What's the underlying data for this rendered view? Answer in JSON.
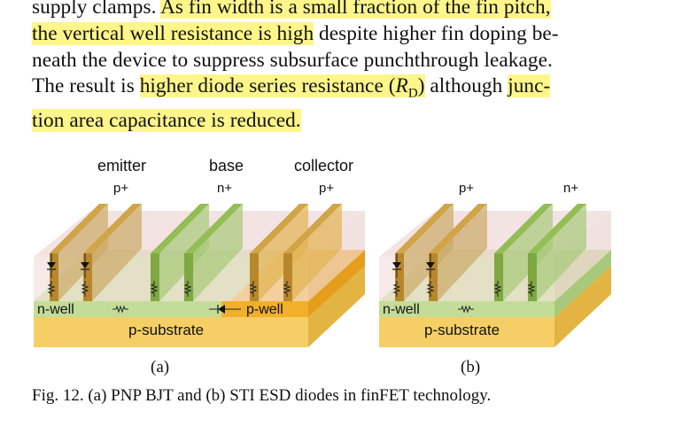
{
  "paragraph": {
    "l1a": "supply clamps. ",
    "l1b": "As fin width is a small fraction of the fin pitch,",
    "l2a": "the vertical well resistance is high",
    "l2b": " despite higher fin doping be-",
    "l3": "neath the device to suppress subsurface punchthrough leakage.",
    "l4a": "The result is ",
    "l4b": "higher diode series resistance (",
    "l4c": "R",
    "l4d": "D",
    "l4e": ")",
    "l4f": " although ",
    "l4g": "junc-",
    "l5": "tion area capacitance is reduced."
  },
  "figure_a": {
    "emitter": "emitter",
    "base": "base",
    "collector": "collector",
    "p_plus_1": "p+",
    "n_plus": "n+",
    "p_plus_2": "p+",
    "nwell": "n-well",
    "pwell": "p-well",
    "substrate": "p-substrate",
    "sublabel": "(a)"
  },
  "figure_b": {
    "p_plus": "p+",
    "n_plus": "n+",
    "nwell": "n-well",
    "substrate": "p-substrate",
    "sublabel": "(b)"
  },
  "caption": "Fig. 12. (a) PNP BJT and (b) STI ESD diodes in finFET technology.",
  "colors": {
    "highlight": "#fef68a",
    "fin_p": "#b8872c",
    "fin_n": "#7fa843",
    "nwell": "#c3dc97",
    "pwell": "#f2b02a",
    "substrate": "#f5cf65",
    "sti": "#ecd4d4"
  }
}
